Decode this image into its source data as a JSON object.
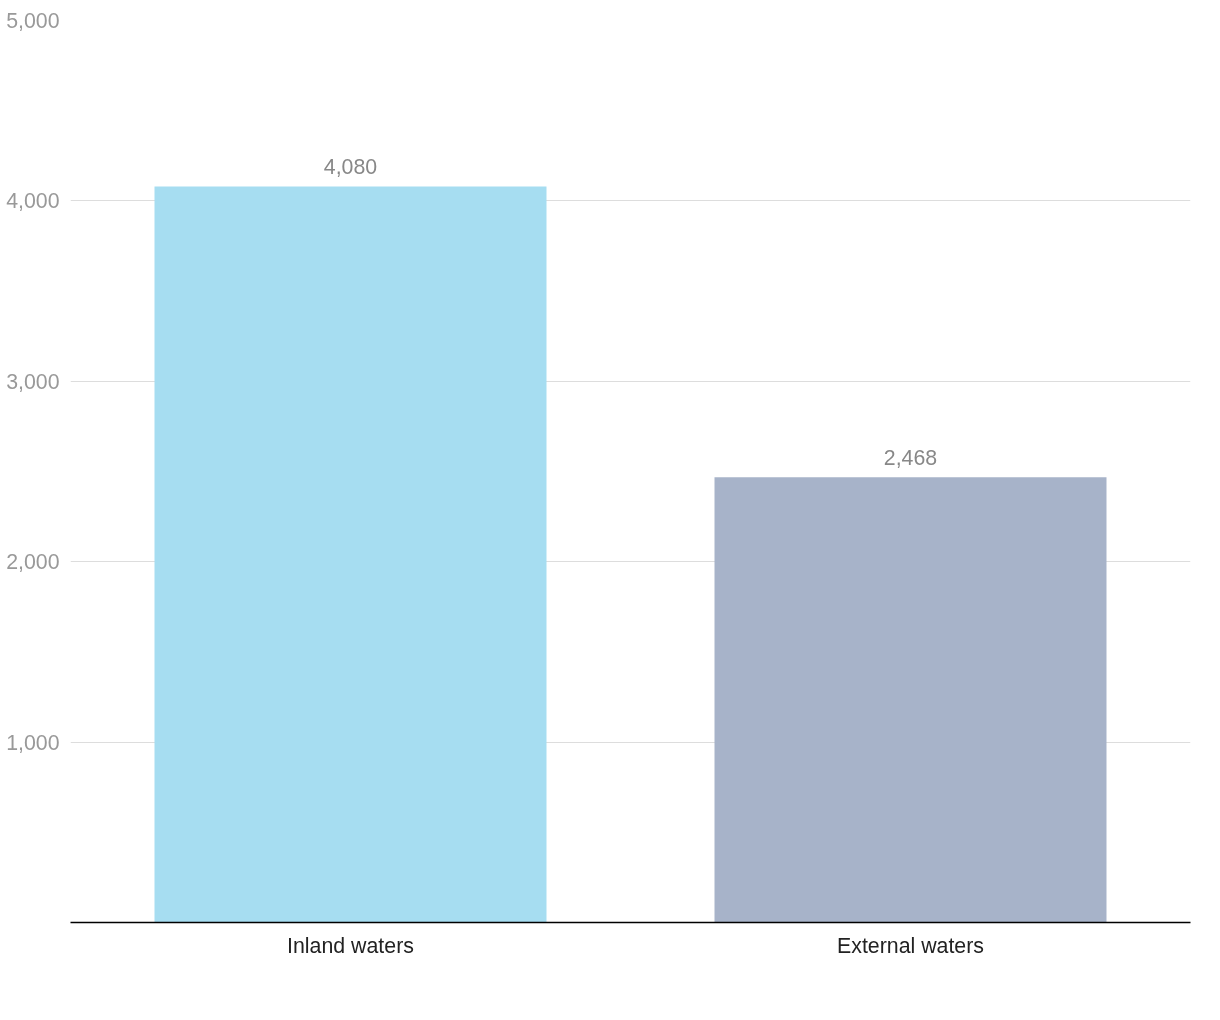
{
  "chart_data": {
    "type": "bar",
    "categories": [
      "Inland waters",
      "External waters"
    ],
    "values": [
      4080,
      2468
    ],
    "colors": [
      "#a6ddf1",
      "#a7b3c9"
    ],
    "value_labels": [
      "4,080",
      "2,468"
    ],
    "ylim": [
      0,
      5000
    ],
    "yticks": [
      {
        "value": 1000,
        "label": "1,000"
      },
      {
        "value": 2000,
        "label": "2,000"
      },
      {
        "value": 3000,
        "label": "3,000"
      },
      {
        "value": 4000,
        "label": "4,000"
      },
      {
        "value": 5000,
        "label": "5,000"
      }
    ],
    "grid": "y"
  }
}
